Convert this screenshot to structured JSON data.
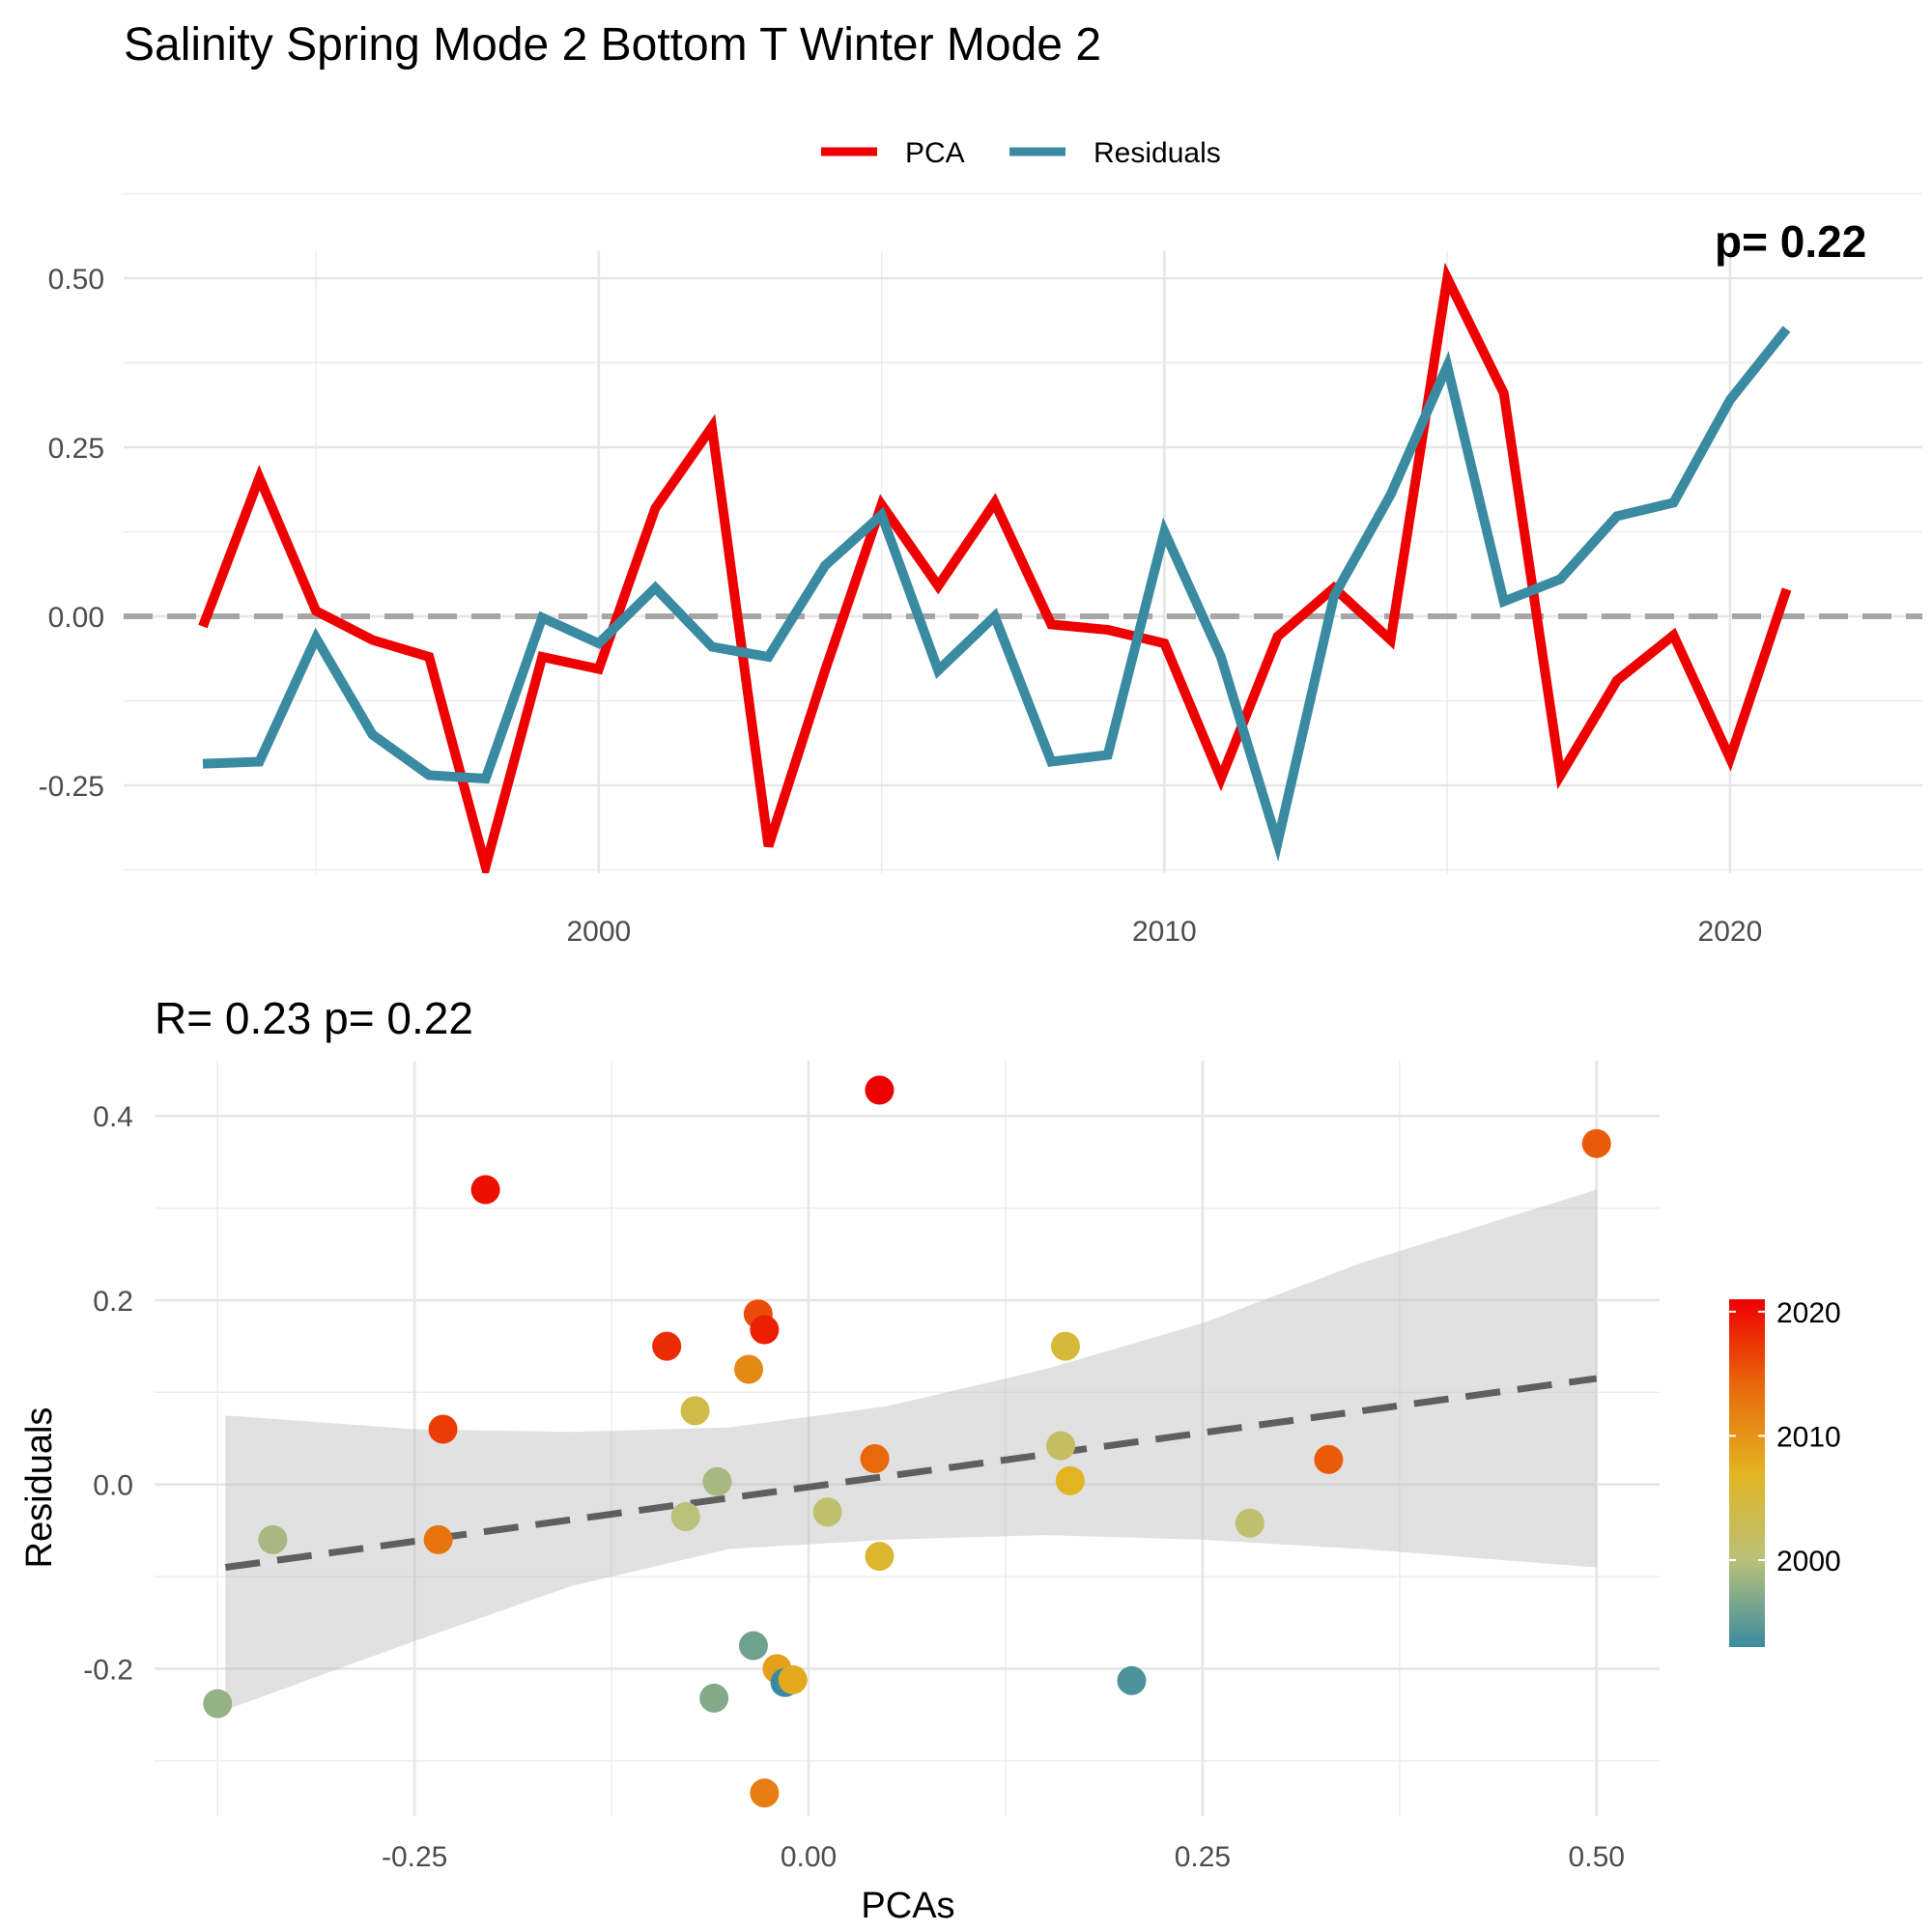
{
  "chart_data": [
    {
      "type": "line",
      "title": "Salinity Spring Mode 2 Bottom T Winter Mode 2",
      "corner_annotation": "p= 0.22",
      "xlabel": "",
      "ylabel": "",
      "xlim": [
        1991.6,
        2023.4
      ],
      "ylim": [
        -0.38,
        0.54
      ],
      "x_ticks": [
        2000,
        2010,
        2020
      ],
      "x_tick_labels": [
        "2000",
        "2010",
        "2020"
      ],
      "y_ticks": [
        -0.25,
        0,
        0.25,
        0.5
      ],
      "y_tick_labels": [
        "-0.25",
        "0.00",
        "0.25",
        "0.50"
      ],
      "grid": true,
      "legend_position": "top",
      "zero_line": 0,
      "x": [
        1993,
        1994,
        1995,
        1996,
        1997,
        1998,
        1999,
        2000,
        2001,
        2002,
        2003,
        2004,
        2005,
        2006,
        2007,
        2008,
        2009,
        2010,
        2011,
        2012,
        2013,
        2014,
        2015,
        2016,
        2017,
        2018,
        2019,
        2020,
        2021
      ],
      "series": [
        {
          "name": "PCA",
          "color": "#ee0000",
          "values": [
            -0.015,
            0.205,
            0.008,
            -0.035,
            -0.06,
            -0.37,
            -0.06,
            -0.078,
            0.16,
            0.28,
            -0.34,
            -0.08,
            0.165,
            0.045,
            0.168,
            -0.012,
            -0.02,
            -0.04,
            -0.24,
            -0.03,
            0.042,
            -0.035,
            0.5,
            0.33,
            -0.235,
            -0.095,
            -0.028,
            -0.21,
            0.04
          ]
        },
        {
          "name": "Residuals",
          "color": "#3a8ba1",
          "values": [
            -0.218,
            -0.215,
            -0.032,
            -0.175,
            -0.235,
            -0.24,
            -0.002,
            -0.04,
            0.042,
            -0.045,
            -0.06,
            0.075,
            0.15,
            -0.08,
            0.0,
            -0.215,
            -0.205,
            0.125,
            -0.06,
            -0.335,
            0.03,
            0.18,
            0.37,
            0.022,
            0.055,
            0.148,
            0.168,
            0.32,
            0.425
          ]
        }
      ]
    },
    {
      "type": "scatter",
      "title": "R= 0.23  p= 0.22",
      "xlabel": "PCAs",
      "ylabel": "Residuals",
      "xlim": [
        -0.415,
        0.54
      ],
      "ylim": [
        -0.36,
        0.46
      ],
      "x_ticks": [
        -0.25,
        0,
        0.25,
        0.5
      ],
      "x_tick_labels": [
        "-0.25",
        "0.00",
        "0.25",
        "0.50"
      ],
      "y_ticks": [
        -0.2,
        0,
        0.2,
        0.4
      ],
      "y_tick_labels": [
        "-0.2",
        "0.0",
        "0.2",
        "0.4"
      ],
      "grid": true,
      "legend_position": "right",
      "colorbar": {
        "labels": [
          "2000",
          "2010",
          "2020"
        ],
        "label_values": [
          2000,
          2010,
          2020
        ],
        "range": [
          1993,
          2021
        ],
        "colors": [
          "#3a8ba1",
          "#b9c17a",
          "#e2b422",
          "#e8690b",
          "#ee0000"
        ]
      },
      "trend": {
        "x": [
          -0.37,
          0.5
        ],
        "y": [
          -0.09,
          0.115
        ]
      },
      "ribbon": {
        "x": [
          -0.37,
          -0.25,
          -0.15,
          -0.05,
          0.05,
          0.15,
          0.25,
          0.35,
          0.5
        ],
        "lower": [
          -0.245,
          -0.17,
          -0.11,
          -0.07,
          -0.06,
          -0.055,
          -0.06,
          -0.07,
          -0.09
        ],
        "upper": [
          0.075,
          0.06,
          0.057,
          0.062,
          0.085,
          0.125,
          0.175,
          0.24,
          0.32
        ]
      },
      "points": [
        {
          "x": -0.375,
          "y": -0.238,
          "year": 1998
        },
        {
          "x": -0.34,
          "y": -0.06,
          "year": 1999
        },
        {
          "x": -0.235,
          "y": -0.06,
          "year": 2013
        },
        {
          "x": -0.232,
          "y": 0.06,
          "year": 2017
        },
        {
          "x": -0.205,
          "y": 0.32,
          "year": 2020
        },
        {
          "x": -0.09,
          "y": 0.15,
          "year": 2018
        },
        {
          "x": -0.078,
          "y": -0.035,
          "year": 2000
        },
        {
          "x": -0.072,
          "y": 0.08,
          "year": 2004
        },
        {
          "x": -0.06,
          "y": -0.232,
          "year": 1997
        },
        {
          "x": -0.058,
          "y": 0.003,
          "year": 1999
        },
        {
          "x": -0.038,
          "y": 0.125,
          "year": 2011
        },
        {
          "x": -0.035,
          "y": -0.175,
          "year": 1996
        },
        {
          "x": -0.032,
          "y": 0.185,
          "year": 2016
        },
        {
          "x": -0.028,
          "y": 0.168,
          "year": 2019
        },
        {
          "x": -0.028,
          "y": -0.335,
          "year": 2012
        },
        {
          "x": -0.02,
          "y": -0.2,
          "year": 2009
        },
        {
          "x": -0.015,
          "y": -0.215,
          "year": 1993
        },
        {
          "x": -0.01,
          "y": -0.212,
          "year": 2008
        },
        {
          "x": 0.012,
          "y": -0.03,
          "year": 2001
        },
        {
          "x": 0.042,
          "y": 0.028,
          "year": 2014
        },
        {
          "x": 0.045,
          "y": 0.428,
          "year": 2021
        },
        {
          "x": 0.045,
          "y": -0.078,
          "year": 2006
        },
        {
          "x": 0.16,
          "y": 0.042,
          "year": 2002
        },
        {
          "x": 0.163,
          "y": 0.15,
          "year": 2005
        },
        {
          "x": 0.166,
          "y": 0.004,
          "year": 2007
        },
        {
          "x": 0.205,
          "y": -0.213,
          "year": 1994
        },
        {
          "x": 0.28,
          "y": -0.042,
          "year": 2001
        },
        {
          "x": 0.33,
          "y": 0.027,
          "year": 2015
        },
        {
          "x": 0.5,
          "y": 0.37,
          "year": 2015
        }
      ]
    }
  ]
}
